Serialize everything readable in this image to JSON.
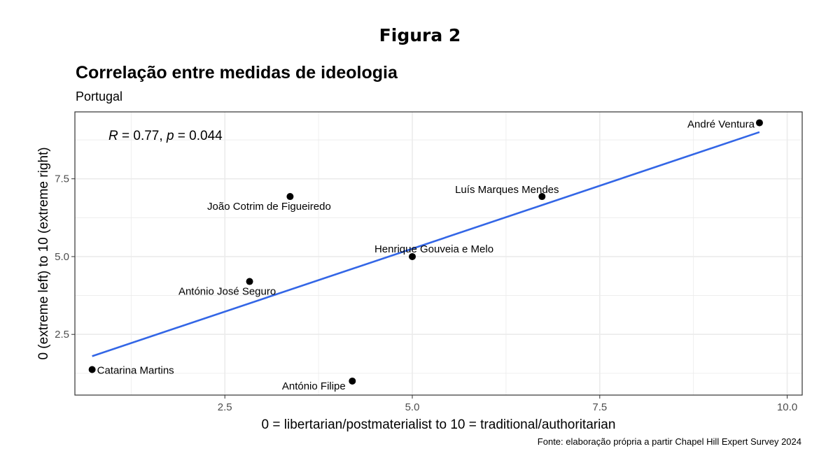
{
  "figure_label": "Figura 2",
  "caption": "Fonte: elaboração própria a partir Chapel Hill Expert Survey 2024",
  "colors": {
    "line": "#3366e6",
    "point": "#000000",
    "grid": "#ebebeb",
    "border": "#333333"
  },
  "chart_data": {
    "type": "scatter",
    "title": "Correlação entre medidas de ideologia",
    "subtitle": "Portugal",
    "xlabel": "0 = libertarian/postmaterialist to 10 = traditional/authoritarian",
    "ylabel": "0 (extreme left) to 10 (extreme right)",
    "xlim": [
      0.5,
      10.2
    ],
    "ylim": [
      0.55,
      9.65
    ],
    "x_ticks": [
      "2.5",
      "5.0",
      "7.5",
      "10.0"
    ],
    "y_ticks": [
      "2.5",
      "5.0",
      "7.5"
    ],
    "grid": true,
    "annotation": {
      "r_symbol": "R",
      "r_text": " = 0.77, ",
      "p_symbol": "p",
      "p_text": " = 0.044"
    },
    "points": [
      {
        "label": "André Ventura",
        "x": 9.63,
        "y": 9.3
      },
      {
        "label": "Luís Marques Mendes",
        "x": 6.73,
        "y": 6.93
      },
      {
        "label": "João Cotrim de Figueiredo",
        "x": 3.37,
        "y": 6.93
      },
      {
        "label": "Henrique Gouveia e Melo",
        "x": 5.0,
        "y": 5.0
      },
      {
        "label": "António José Seguro",
        "x": 2.83,
        "y": 4.2
      },
      {
        "label": "Catarina Martins",
        "x": 0.73,
        "y": 1.37
      },
      {
        "label": "António Filipe",
        "x": 4.2,
        "y": 1.0
      }
    ],
    "fit_line": {
      "x": [
        0.73,
        9.63
      ],
      "y": [
        1.8,
        9.0
      ]
    }
  }
}
